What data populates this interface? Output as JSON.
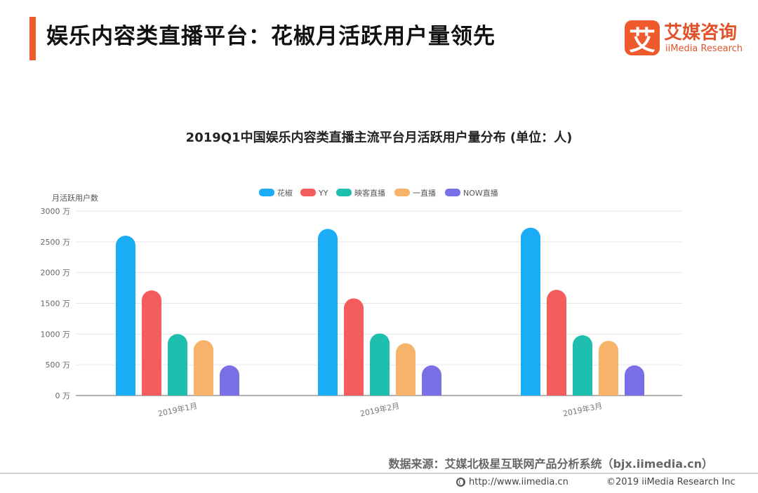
{
  "header": {
    "title": "娱乐内容类直播平台：花椒月活跃用户量领先",
    "accent_color": "#ee5a2b"
  },
  "logo": {
    "mark": "艾",
    "cn": "艾媒咨询",
    "en": "iiMedia Research",
    "color": "#ee5a2b"
  },
  "chart_data": {
    "type": "bar",
    "title": "2019Q1中国娱乐内容类直播主流平台月活跃用户量分布 (单位：人)",
    "ylabel": "月活跃用户数",
    "ylim": [
      0,
      3000
    ],
    "yticks": [
      "0 万",
      "500 万",
      "1000 万",
      "1500 万",
      "2000 万",
      "2500 万",
      "3000 万"
    ],
    "grid": true,
    "legend_position": "top-center",
    "categories": [
      "2019年1月",
      "2019年2月",
      "2019年3月"
    ],
    "series": [
      {
        "name": "花椒",
        "color": "#1aadf5",
        "values": [
          2600,
          2710,
          2730
        ]
      },
      {
        "name": "YY",
        "color": "#f55d5d",
        "values": [
          1710,
          1580,
          1720
        ]
      },
      {
        "name": "映客直播",
        "color": "#1ebfae",
        "values": [
          1000,
          1010,
          980
        ]
      },
      {
        "name": "一直播",
        "color": "#f7b36a",
        "values": [
          900,
          850,
          890
        ]
      },
      {
        "name": "NOW直播",
        "color": "#7b6fe8",
        "values": [
          490,
          490,
          490
        ]
      }
    ]
  },
  "source_text": "数据来源：艾媒北极星互联网产品分析系统（bjx.iimedia.cn）",
  "footer": {
    "url": "http://www.iimedia.cn",
    "copyright": "©2019 iiMedia Research Inc"
  }
}
